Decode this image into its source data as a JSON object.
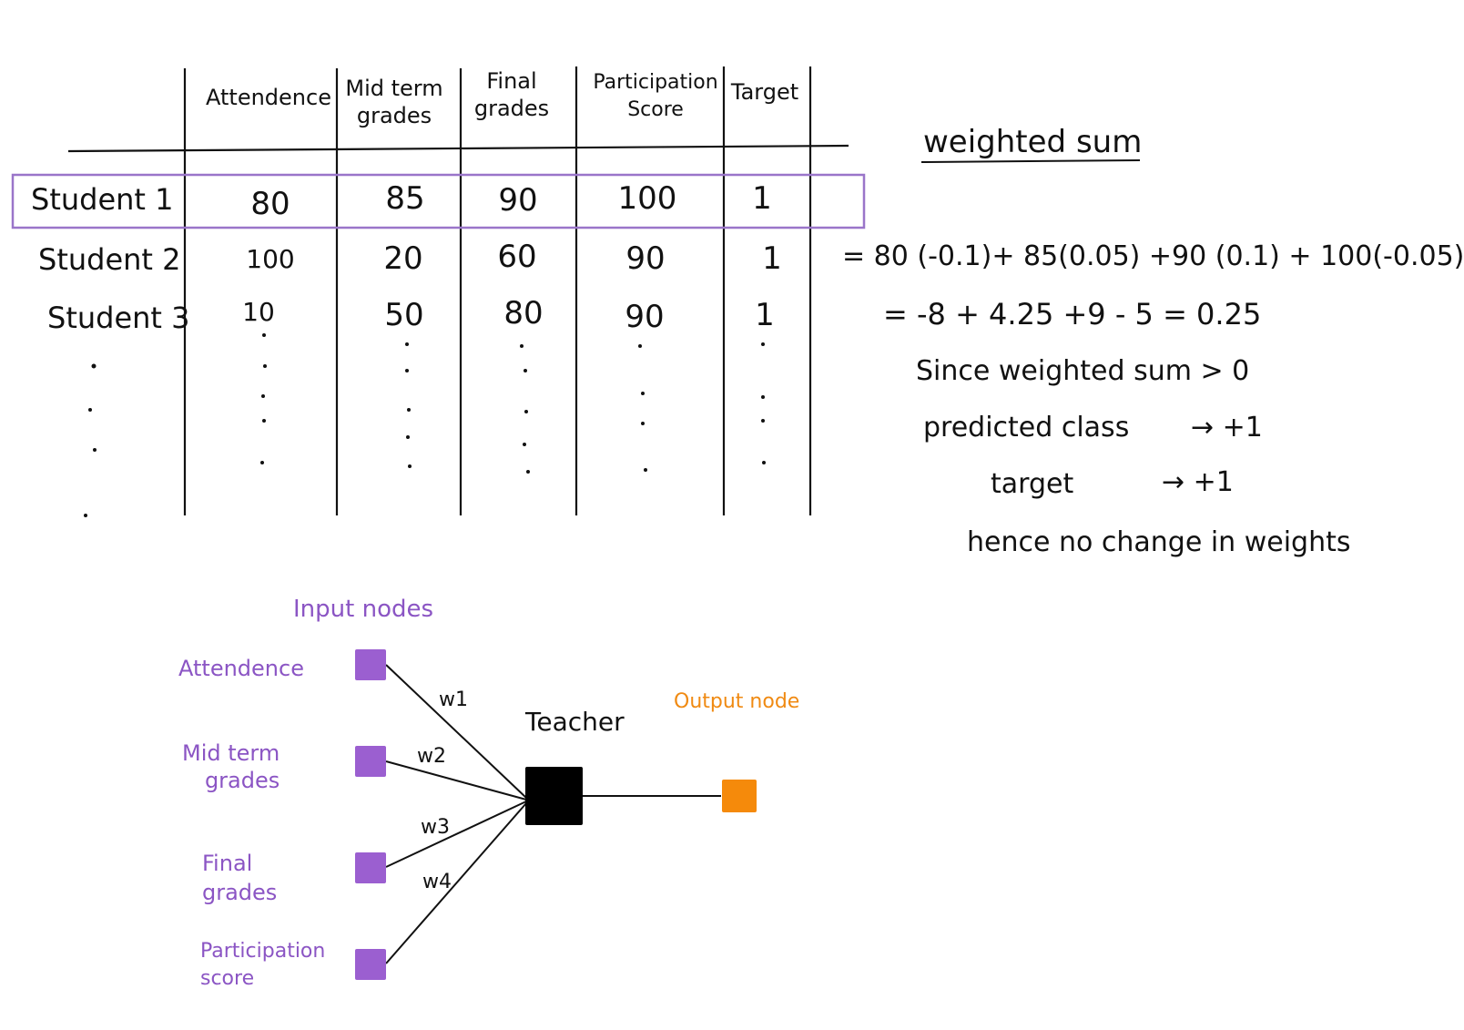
{
  "table": {
    "headers": [
      "Attendence",
      "Mid term\ngrades",
      "Final\ngrades",
      "Participation\nScore",
      "Target"
    ],
    "rows": [
      {
        "label": "Student 1",
        "values": [
          "80",
          "85",
          "90",
          "100",
          "1"
        ]
      },
      {
        "label": "Student 2",
        "values": [
          "100",
          "20",
          "60",
          "90",
          "1"
        ]
      },
      {
        "label": "Student 3",
        "values": [
          "10",
          "50",
          "80",
          "90",
          "1"
        ]
      }
    ]
  },
  "calc": {
    "title": "weighted sum",
    "line1": "= 80 (-0.1)+ 85(0.05) +90 (0.1) + 100(-0.05)",
    "line2": "= -8 + 4.25 +9 - 5 = 0.25",
    "line3": "Since weighted sum > 0",
    "line4_label": "predicted class",
    "line4_value": "→ +1",
    "line5_label": "target",
    "line5_value": "→ +1",
    "line6": "hence no change in weights"
  },
  "network": {
    "input_title": "Input nodes",
    "inputs": [
      "Attendence",
      "Mid term\ngrades",
      "Final\ngrades",
      "Participation\nscore"
    ],
    "weights": [
      "w1",
      "w2",
      "w3",
      "w4"
    ],
    "center_label": "Teacher",
    "output_title": "Output node",
    "colors": {
      "input": "#9b5fd0",
      "center": "#000000",
      "output": "#f58a0b",
      "text_purple": "#8b55c4",
      "text_orange": "#f08a12"
    }
  }
}
